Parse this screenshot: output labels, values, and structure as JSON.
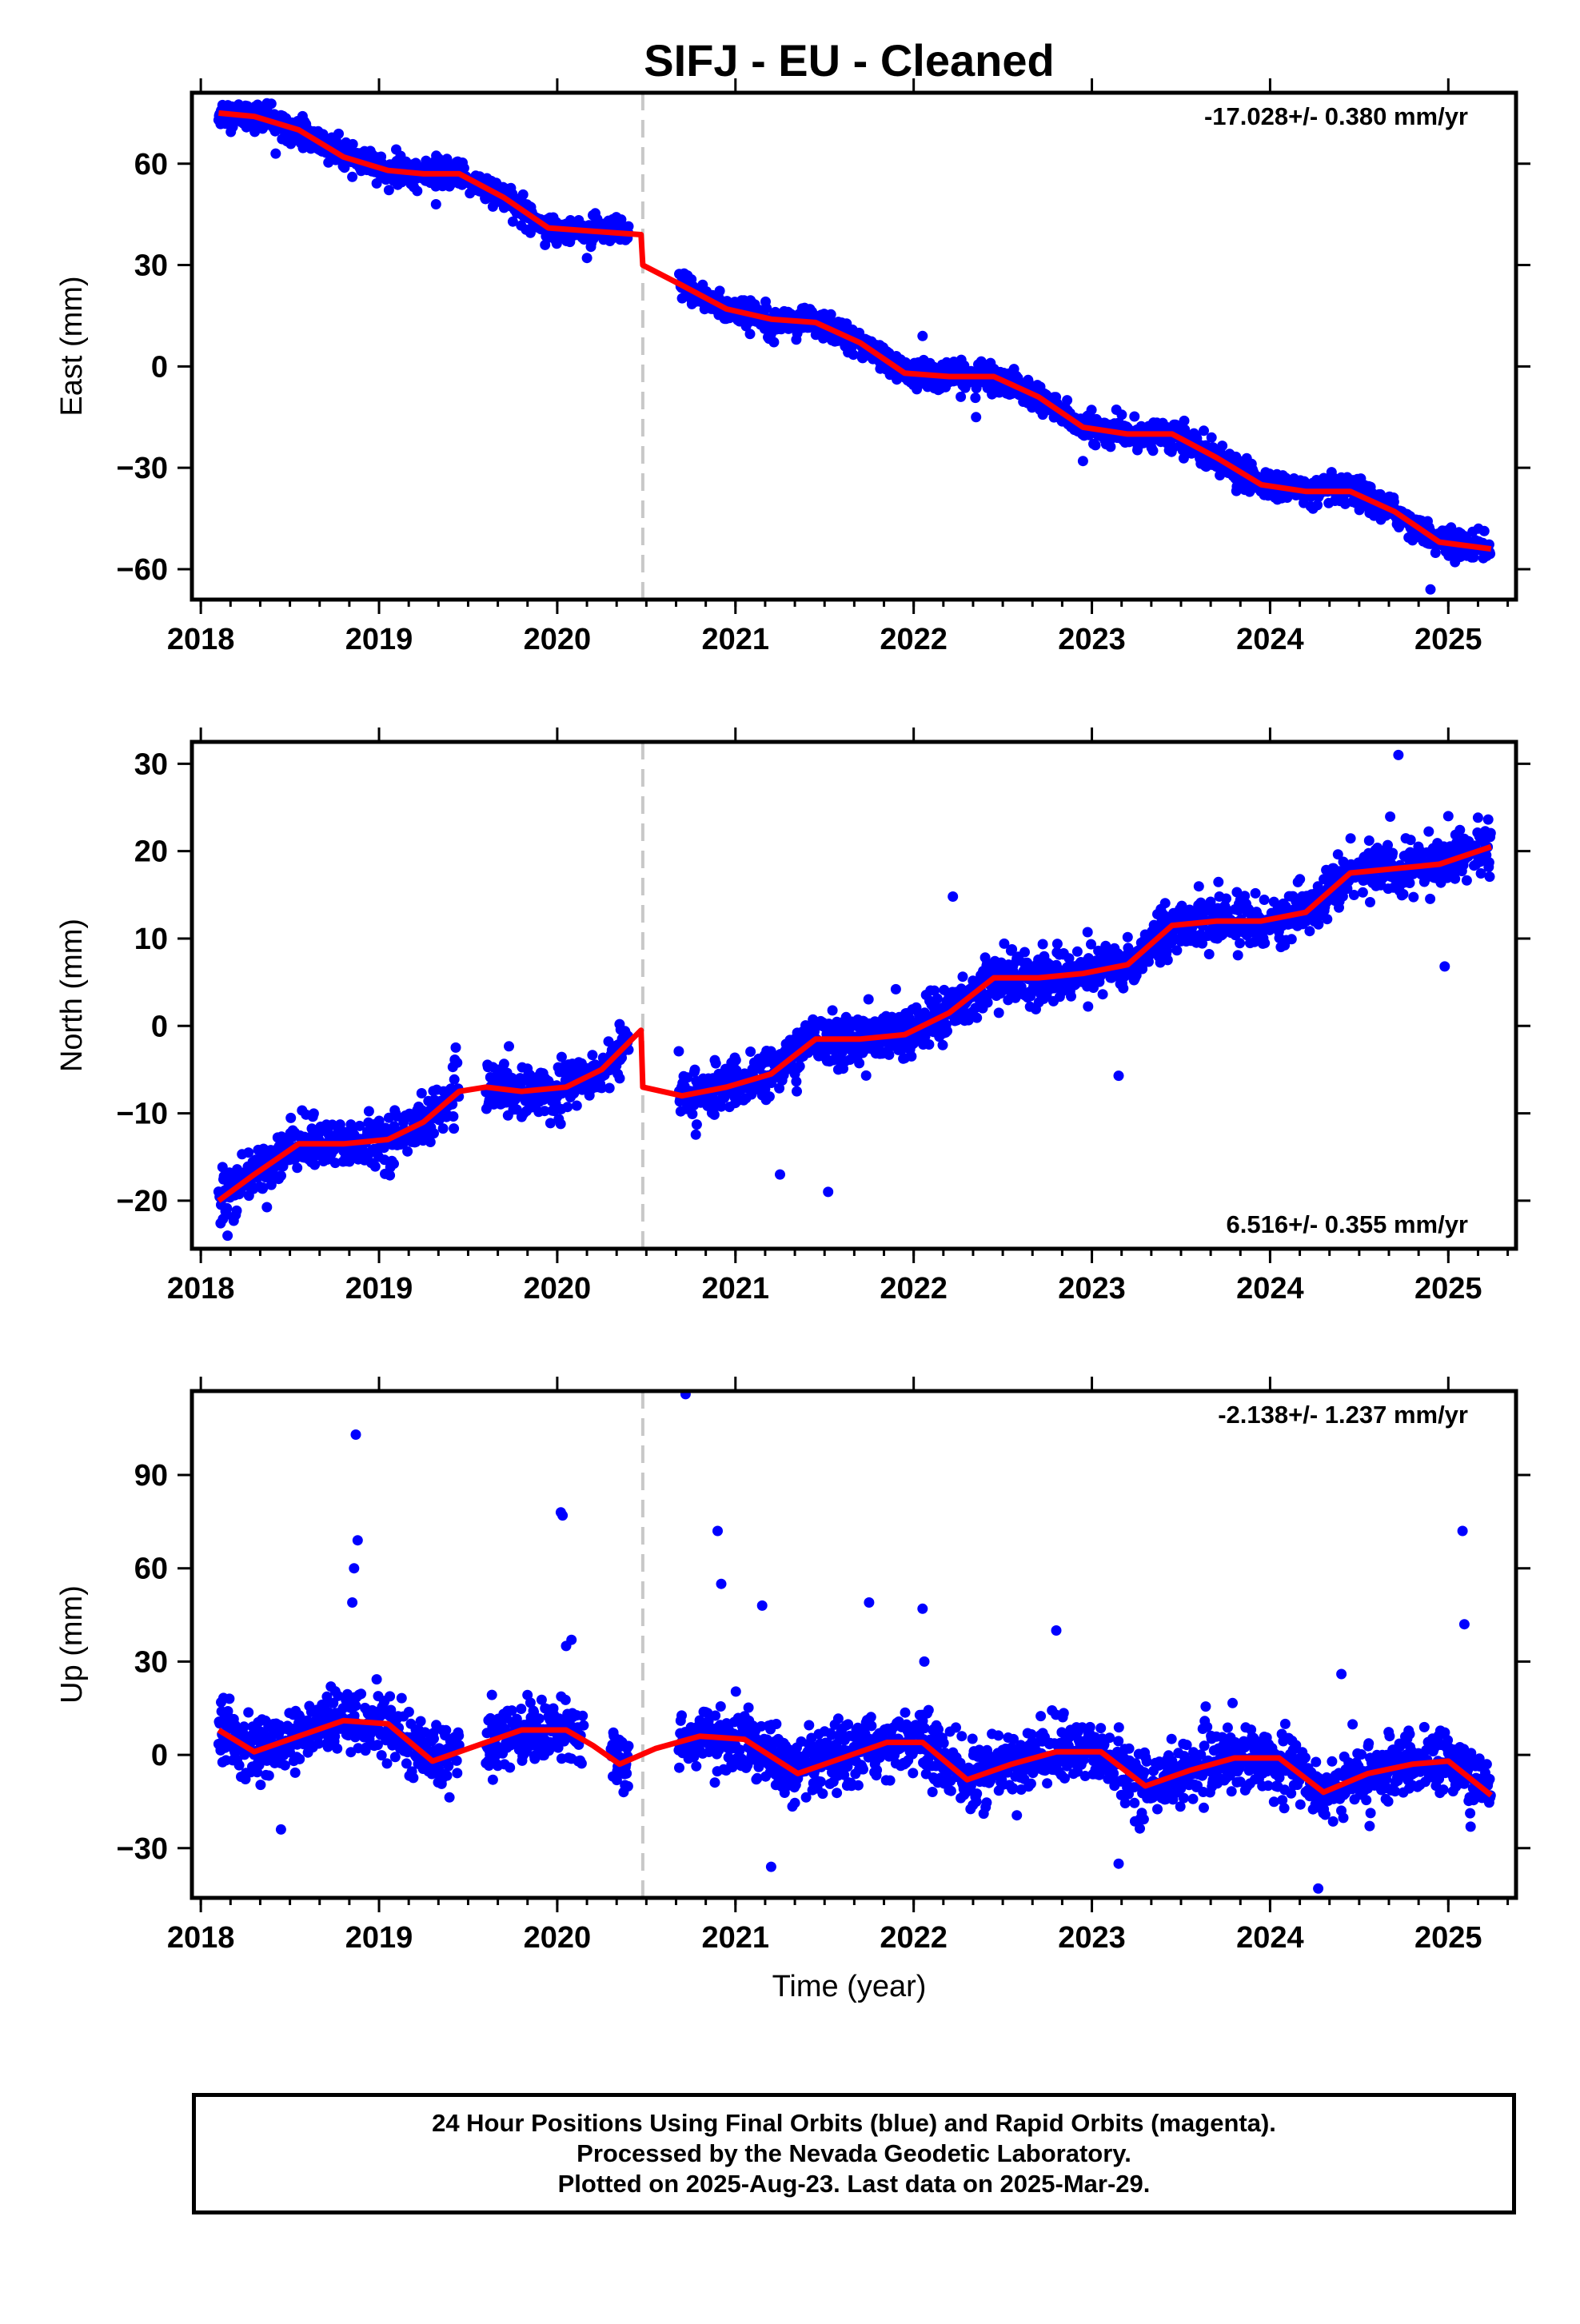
{
  "title": "SIFJ  - EU - Cleaned",
  "xlabel": "Time (year)",
  "footer": {
    "line1": "24 Hour Positions Using Final Orbits (blue) and Rapid Orbits (magenta).",
    "line2": "Processed by the Nevada Geodetic Laboratory.",
    "line3": "Plotted on 2025-Aug-23. Last data on 2025-Mar-29."
  },
  "colors": {
    "points": "#0000ff",
    "fit": "#ff0000",
    "step_line": "#c8c8c8",
    "axis": "#000000"
  },
  "chart_data": [
    {
      "type": "scatter",
      "id": "east",
      "ylabel": "East (mm)",
      "xlim": [
        2017.95,
        2025.38
      ],
      "ylim": [
        -69,
        81
      ],
      "xticks": [
        2018,
        2019,
        2020,
        2021,
        2022,
        2023,
        2024,
        2025
      ],
      "yticks": [
        -60,
        -30,
        0,
        30,
        60
      ],
      "rate_label": "-17.028+/- 0.380 mm/yr",
      "rate_position": "top-right",
      "step_epoch": 2020.48,
      "data_range": [
        2018.1,
        2025.24
      ],
      "gaps": [
        [
          2020.4,
          2020.68
        ]
      ],
      "rate_mm_per_yr": -17.028,
      "noise_sd_mm": 2.0,
      "fit_series": {
        "name": "model",
        "points": [
          [
            2018.1,
            75
          ],
          [
            2018.3,
            74
          ],
          [
            2018.55,
            70
          ],
          [
            2018.8,
            62
          ],
          [
            2019.05,
            58
          ],
          [
            2019.25,
            57
          ],
          [
            2019.45,
            57
          ],
          [
            2019.7,
            50
          ],
          [
            2019.95,
            41
          ],
          [
            2020.2,
            40
          ],
          [
            2020.47,
            39
          ],
          [
            2020.48,
            30
          ],
          [
            2020.7,
            24
          ],
          [
            2020.95,
            17
          ],
          [
            2021.2,
            14
          ],
          [
            2021.45,
            13
          ],
          [
            2021.7,
            7
          ],
          [
            2021.95,
            -2
          ],
          [
            2022.2,
            -3
          ],
          [
            2022.45,
            -3
          ],
          [
            2022.7,
            -9
          ],
          [
            2022.95,
            -18
          ],
          [
            2023.2,
            -20
          ],
          [
            2023.45,
            -20
          ],
          [
            2023.7,
            -27
          ],
          [
            2023.95,
            -35
          ],
          [
            2024.2,
            -37
          ],
          [
            2024.45,
            -37
          ],
          [
            2024.7,
            -43
          ],
          [
            2024.95,
            -52
          ],
          [
            2025.24,
            -54
          ]
        ]
      },
      "outliers": [
        [
          2018.42,
          63
        ],
        [
          2019.32,
          48
        ],
        [
          2022.05,
          9
        ],
        [
          2022.35,
          -15
        ],
        [
          2022.95,
          -28
        ],
        [
          2024.9,
          -66
        ],
        [
          2025.2,
          -55
        ]
      ]
    },
    {
      "type": "scatter",
      "id": "north",
      "ylabel": "North (mm)",
      "xlim": [
        2017.95,
        2025.38
      ],
      "ylim": [
        -25.5,
        32.5
      ],
      "xticks": [
        2018,
        2019,
        2020,
        2021,
        2022,
        2023,
        2024,
        2025
      ],
      "yticks": [
        -20,
        -10,
        0,
        10,
        20,
        30
      ],
      "rate_label": "6.516+/- 0.355 mm/yr",
      "rate_position": "bottom-right",
      "step_epoch": 2020.48,
      "data_range": [
        2018.1,
        2025.24
      ],
      "gaps": [
        [
          2019.45,
          2019.6
        ],
        [
          2020.4,
          2020.68
        ]
      ],
      "rate_mm_per_yr": 6.516,
      "noise_sd_mm": 1.4,
      "fit_series": {
        "name": "model",
        "points": [
          [
            2018.1,
            -20
          ],
          [
            2018.3,
            -17
          ],
          [
            2018.55,
            -13.5
          ],
          [
            2018.8,
            -13.5
          ],
          [
            2019.05,
            -13
          ],
          [
            2019.25,
            -11
          ],
          [
            2019.45,
            -7.5
          ],
          [
            2019.6,
            -7
          ],
          [
            2019.8,
            -7.5
          ],
          [
            2020.05,
            -7
          ],
          [
            2020.25,
            -5
          ],
          [
            2020.47,
            -0.5
          ],
          [
            2020.48,
            -7
          ],
          [
            2020.7,
            -8
          ],
          [
            2020.95,
            -7
          ],
          [
            2021.2,
            -5.5
          ],
          [
            2021.45,
            -1.5
          ],
          [
            2021.7,
            -1.5
          ],
          [
            2021.95,
            -1
          ],
          [
            2022.2,
            1.5
          ],
          [
            2022.45,
            5.5
          ],
          [
            2022.7,
            5.5
          ],
          [
            2022.95,
            6
          ],
          [
            2023.2,
            7
          ],
          [
            2023.45,
            11.5
          ],
          [
            2023.7,
            12
          ],
          [
            2023.95,
            12
          ],
          [
            2024.2,
            13
          ],
          [
            2024.45,
            17.5
          ],
          [
            2024.7,
            18
          ],
          [
            2024.95,
            18.5
          ],
          [
            2025.24,
            20.5
          ]
        ]
      },
      "outliers": [
        [
          2018.15,
          -24
        ],
        [
          2021.25,
          -17
        ],
        [
          2021.52,
          -19
        ],
        [
          2022.22,
          14.8
        ],
        [
          2023.15,
          -5.7
        ],
        [
          2024.72,
          31
        ],
        [
          2024.98,
          6.8
        ],
        [
          2025.0,
          24
        ],
        [
          2020.35,
          0.2
        ]
      ]
    },
    {
      "type": "scatter",
      "id": "up",
      "ylabel": "Up (mm)",
      "xlim": [
        2017.95,
        2025.38
      ],
      "ylim": [
        -46,
        117
      ],
      "xticks": [
        2018,
        2019,
        2020,
        2021,
        2022,
        2023,
        2024,
        2025
      ],
      "yticks": [
        -30,
        0,
        30,
        60,
        90
      ],
      "rate_label": "-2.138+/- 1.237 mm/yr",
      "rate_position": "top-right",
      "step_epoch": 2020.48,
      "data_range": [
        2018.1,
        2025.24
      ],
      "gaps": [
        [
          2019.45,
          2019.6
        ],
        [
          2020.15,
          2020.3
        ],
        [
          2020.4,
          2020.68
        ]
      ],
      "rate_mm_per_yr": -2.138,
      "noise_sd_mm": 5.0,
      "fit_series": {
        "name": "model",
        "points": [
          [
            2018.1,
            8
          ],
          [
            2018.3,
            1
          ],
          [
            2018.55,
            6
          ],
          [
            2018.8,
            11
          ],
          [
            2019.05,
            10
          ],
          [
            2019.3,
            -2
          ],
          [
            2019.55,
            3
          ],
          [
            2019.8,
            8
          ],
          [
            2020.05,
            8
          ],
          [
            2020.2,
            3
          ],
          [
            2020.35,
            -3
          ],
          [
            2020.55,
            2
          ],
          [
            2020.8,
            6
          ],
          [
            2021.05,
            5
          ],
          [
            2021.35,
            -6
          ],
          [
            2021.6,
            -1
          ],
          [
            2021.85,
            4
          ],
          [
            2022.05,
            4
          ],
          [
            2022.3,
            -8
          ],
          [
            2022.55,
            -3
          ],
          [
            2022.8,
            1
          ],
          [
            2023.05,
            1
          ],
          [
            2023.3,
            -10
          ],
          [
            2023.55,
            -5
          ],
          [
            2023.8,
            -1
          ],
          [
            2024.05,
            -1
          ],
          [
            2024.3,
            -12
          ],
          [
            2024.55,
            -6
          ],
          [
            2024.8,
            -3
          ],
          [
            2025.0,
            -2
          ],
          [
            2025.24,
            -13
          ]
        ]
      },
      "outliers": [
        [
          2018.87,
          103
        ],
        [
          2018.88,
          69
        ],
        [
          2018.86,
          60
        ],
        [
          2018.85,
          49
        ],
        [
          2020.02,
          78
        ],
        [
          2020.03,
          77
        ],
        [
          2020.08,
          37
        ],
        [
          2020.05,
          35
        ],
        [
          2020.72,
          116
        ],
        [
          2020.9,
          72
        ],
        [
          2020.92,
          55
        ],
        [
          2021.15,
          48
        ],
        [
          2021.75,
          49
        ],
        [
          2022.05,
          47
        ],
        [
          2022.06,
          30
        ],
        [
          2022.8,
          40
        ],
        [
          2025.08,
          72
        ],
        [
          2025.09,
          42
        ],
        [
          2021.2,
          -36
        ],
        [
          2023.15,
          -35
        ],
        [
          2024.27,
          -43
        ],
        [
          2018.45,
          -24
        ],
        [
          2024.4,
          26
        ]
      ]
    }
  ]
}
